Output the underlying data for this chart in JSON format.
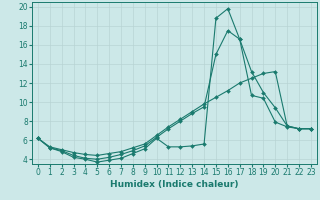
{
  "title": "",
  "xlabel": "Humidex (Indice chaleur)",
  "bg_color": "#cce8e8",
  "line_color": "#1a7a6e",
  "grid_color": "#b8d4d4",
  "xlim": [
    -0.5,
    23.5
  ],
  "ylim": [
    3.5,
    20.5
  ],
  "xticks": [
    0,
    1,
    2,
    3,
    4,
    5,
    6,
    7,
    8,
    9,
    10,
    11,
    12,
    13,
    14,
    15,
    16,
    17,
    18,
    19,
    20,
    21,
    22,
    23
  ],
  "yticks": [
    4,
    6,
    8,
    10,
    12,
    14,
    16,
    18,
    20
  ],
  "line1_x": [
    0,
    1,
    2,
    3,
    4,
    5,
    6,
    7,
    8,
    9,
    10,
    11,
    12,
    13,
    14,
    15,
    16,
    17,
    18,
    19,
    20,
    21,
    22,
    23
  ],
  "line1_y": [
    6.2,
    5.2,
    4.8,
    4.2,
    4.0,
    3.7,
    3.9,
    4.1,
    4.6,
    5.1,
    6.2,
    5.3,
    5.3,
    5.4,
    5.6,
    18.8,
    19.8,
    16.6,
    13.2,
    11.0,
    9.4,
    7.5,
    7.2,
    7.2
  ],
  "line2_x": [
    0,
    1,
    2,
    3,
    4,
    5,
    6,
    7,
    8,
    9,
    10,
    11,
    12,
    13,
    14,
    15,
    16,
    17,
    18,
    19,
    20,
    21,
    22,
    23
  ],
  "line2_y": [
    6.2,
    5.2,
    4.9,
    4.4,
    4.1,
    4.0,
    4.2,
    4.5,
    4.9,
    5.4,
    6.3,
    7.2,
    8.0,
    8.8,
    9.5,
    15.0,
    17.5,
    16.6,
    10.7,
    10.4,
    7.9,
    7.4,
    7.2,
    7.2
  ],
  "line3_x": [
    0,
    1,
    2,
    3,
    4,
    5,
    6,
    7,
    8,
    9,
    10,
    11,
    12,
    13,
    14,
    15,
    16,
    17,
    18,
    19,
    20,
    21,
    22,
    23
  ],
  "line3_y": [
    6.2,
    5.3,
    5.0,
    4.7,
    4.5,
    4.4,
    4.6,
    4.8,
    5.2,
    5.6,
    6.5,
    7.4,
    8.2,
    9.0,
    9.8,
    10.5,
    11.2,
    12.0,
    12.5,
    13.0,
    13.2,
    7.5,
    7.2,
    7.2
  ]
}
